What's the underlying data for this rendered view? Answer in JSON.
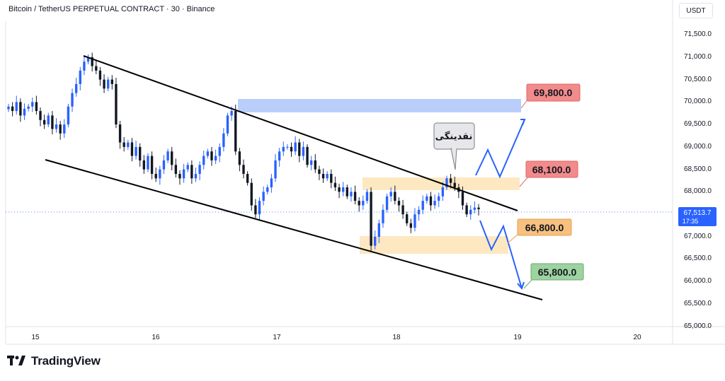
{
  "header": {
    "symbol_title": "Bitcoin / TetherUS PERPETUAL CONTRACT · 30 · Binance",
    "currency": "USDT"
  },
  "price_axis": {
    "ticks": [
      "71,500.0",
      "71,000.0",
      "70,500.0",
      "70,000.0",
      "69,500.0",
      "69,000.0",
      "68,500.0",
      "68,000.0",
      "67,000.0",
      "66,500.0",
      "66,000.0",
      "65,500.0",
      "65,000.0"
    ],
    "current_price": "67,513.7",
    "countdown": "17:35"
  },
  "time_axis": {
    "ticks": [
      "15",
      "16",
      "17",
      "18",
      "19",
      "20"
    ]
  },
  "annotations": {
    "liquidity_label": "نقدینگی",
    "targets": [
      {
        "label": "69,800.0",
        "color": "#f28b8b"
      },
      {
        "label": "68,100.0",
        "color": "#f28b8b"
      },
      {
        "label": "66,800.0",
        "color": "#f7c07f"
      },
      {
        "label": "65,800.0",
        "color": "#9ed3a0"
      }
    ]
  },
  "colors": {
    "bull": "#2962ff",
    "bear": "#131722",
    "supply_zone": "#aec6fb",
    "demand_zone": "#fde2b3",
    "channel": "#000000",
    "projection": "#2962ff"
  },
  "logo": {
    "text": "TradingView"
  },
  "chart_data": {
    "type": "candlestick",
    "title": "Bitcoin / TetherUS PERPETUAL CONTRACT · 30 · Binance",
    "x_ticks": [
      "15",
      "16",
      "17",
      "18",
      "19",
      "20"
    ],
    "y_range": [
      64900,
      71700
    ],
    "last_price": 67513.7,
    "candles_approx_close": [
      69800,
      69700,
      69900,
      69600,
      69750,
      69800,
      69900,
      69700,
      69500,
      69400,
      69600,
      69300,
      69400,
      69200,
      69400,
      69800,
      70100,
      70300,
      70600,
      70800,
      70900,
      70700,
      70600,
      70400,
      70200,
      70400,
      70300,
      69400,
      69000,
      68900,
      69000,
      68700,
      68900,
      68600,
      68400,
      68700,
      68300,
      68200,
      68400,
      68600,
      68800,
      68500,
      68300,
      68200,
      68400,
      68500,
      68200,
      68300,
      68500,
      68700,
      68800,
      68600,
      68700,
      68900,
      69200,
      69600,
      69700,
      68800,
      68500,
      68300,
      68100,
      67600,
      67400,
      67700,
      67900,
      68000,
      68200,
      68600,
      68800,
      68900,
      68900,
      68800,
      69000,
      68700,
      68900,
      68500,
      68600,
      68400,
      68300,
      68200,
      68300,
      68100,
      68000,
      67900,
      68000,
      67800,
      67900,
      67700,
      67600,
      67700,
      67900,
      66700,
      66900,
      67200,
      67500,
      67800,
      67900,
      67700,
      67600,
      67400,
      67200,
      67100,
      67400,
      67500,
      67700,
      67800,
      67600,
      67700,
      67800,
      68000,
      68200,
      68100,
      68000,
      67900,
      67600,
      67400,
      67500,
      67550,
      67513
    ]
  }
}
